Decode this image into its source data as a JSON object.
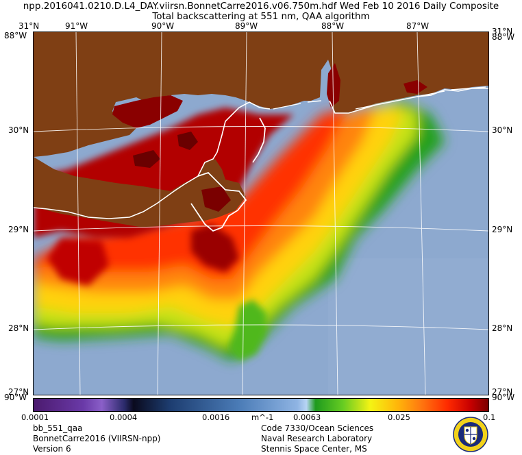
{
  "title": {
    "line1": "npp.2016041.0210.D.L4_DAY.viirsn.BonnetCarre2016.v06.750m.hdf   Wed Feb 10 2016 Daily Composite",
    "line2": "Total backscattering at 551 nm, QAA algorithm"
  },
  "axes": {
    "top_left_lat": "31°N",
    "top_right_lat": "31°N",
    "corner_lon": "88°W",
    "bottom_lat": "27°N",
    "bottom_lon": "90°W",
    "longitudes": [
      {
        "label": "91°W"
      },
      {
        "label": "90°W"
      },
      {
        "label": "89°W"
      },
      {
        "label": "88°W"
      },
      {
        "label": "87°W"
      }
    ],
    "latitudes": [
      {
        "label": "30°N"
      },
      {
        "label": "29°N"
      },
      {
        "label": "28°N"
      }
    ]
  },
  "colors": {
    "land": "#7f3f14",
    "water_low": "#8da9cf",
    "coastline": "#ffffff",
    "grid": "#ffffff"
  },
  "colorbar": {
    "unit": "m^-1",
    "scale": "log",
    "ticks": [
      "0.0001",
      "0.0004",
      "0.0016",
      "0.0063",
      "0.025",
      "0.1"
    ]
  },
  "footer": {
    "left": [
      "bb_551_qaa",
      "BonnetCarre2016 (VIIRSN-npp)",
      "Version 6"
    ],
    "center": [
      "Code 7330/Ocean Sciences",
      "Naval Research Laboratory",
      "Stennis Space Center, MS"
    ]
  },
  "logo": {
    "icon": "nrl-seal-icon"
  }
}
